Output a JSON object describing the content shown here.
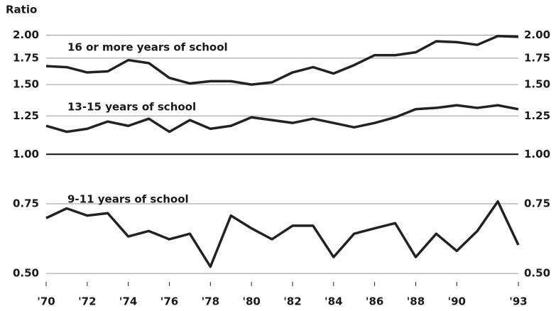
{
  "chart_data": {
    "type": "line",
    "y_axis_label": "Ratio",
    "x": [
      1970,
      1971,
      1972,
      1973,
      1974,
      1975,
      1976,
      1977,
      1978,
      1979,
      1980,
      1981,
      1982,
      1983,
      1984,
      1985,
      1986,
      1987,
      1988,
      1989,
      1990,
      1991,
      1992,
      1993
    ],
    "xlim": [
      1970,
      1993
    ],
    "xticks": [
      {
        "value": 1970,
        "label": "'70"
      },
      {
        "value": 1972,
        "label": "'72"
      },
      {
        "value": 1974,
        "label": "'74"
      },
      {
        "value": 1976,
        "label": "'76"
      },
      {
        "value": 1978,
        "label": "'78"
      },
      {
        "value": 1980,
        "label": "'80"
      },
      {
        "value": 1982,
        "label": "'82"
      },
      {
        "value": 1984,
        "label": "'84"
      },
      {
        "value": 1986,
        "label": "'86"
      },
      {
        "value": 1988,
        "label": "'88"
      },
      {
        "value": 1990,
        "label": "'90"
      },
      {
        "value": 1993,
        "label": "'93"
      }
    ],
    "ylim": [
      0.48,
      2.08
    ],
    "log_scale": true,
    "yticks": [
      {
        "value": 0.5,
        "label": "0.50"
      },
      {
        "value": 0.75,
        "label": "0.75"
      },
      {
        "value": 1,
        "label": "1.00"
      },
      {
        "value": 1.25,
        "label": "1.25"
      },
      {
        "value": 1.5,
        "label": "1.50"
      },
      {
        "value": 1.75,
        "label": "1.75"
      },
      {
        "value": 2,
        "label": "2.00"
      }
    ],
    "grid": true,
    "right_axis_labels": true,
    "reference_line": 1,
    "series": [
      {
        "name": "16 or more years of school",
        "color": "#222222",
        "values": [
          1.67,
          1.66,
          1.61,
          1.62,
          1.73,
          1.7,
          1.56,
          1.51,
          1.53,
          1.53,
          1.5,
          1.52,
          1.61,
          1.66,
          1.6,
          1.68,
          1.78,
          1.78,
          1.81,
          1.93,
          1.92,
          1.89,
          1.99,
          1.98
        ]
      },
      {
        "name": "13-15 years of school",
        "color": "#222222",
        "values": [
          1.18,
          1.14,
          1.16,
          1.21,
          1.18,
          1.23,
          1.14,
          1.22,
          1.16,
          1.18,
          1.24,
          1.22,
          1.2,
          1.23,
          1.2,
          1.17,
          1.2,
          1.24,
          1.3,
          1.31,
          1.33,
          1.31,
          1.33,
          1.3
        ]
      },
      {
        "name": "9-11 years of school",
        "color": "#222222",
        "values": [
          0.69,
          0.73,
          0.7,
          0.71,
          0.62,
          0.64,
          0.61,
          0.63,
          0.52,
          0.7,
          0.65,
          0.61,
          0.66,
          0.66,
          0.55,
          0.63,
          0.65,
          0.67,
          0.55,
          0.63,
          0.57,
          0.64,
          0.76,
          0.59
        ]
      }
    ]
  }
}
